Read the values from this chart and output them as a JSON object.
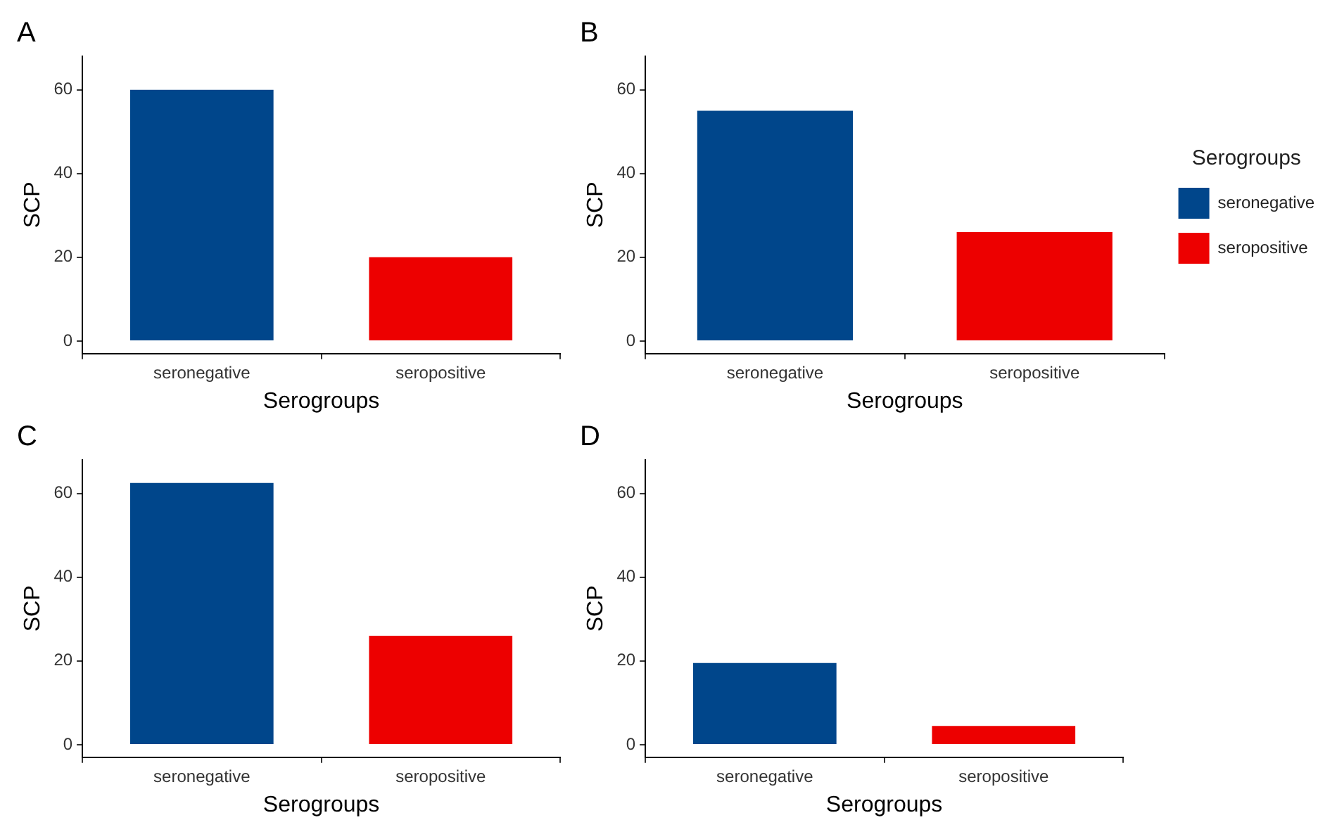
{
  "chart_data": [
    {
      "type": "bar",
      "title": "A",
      "categories": [
        "seronegative",
        "seropositive"
      ],
      "series": [
        {
          "color": "#00468b",
          "values": [
            60,
            null
          ]
        },
        {
          "color": "#ed0000",
          "values": [
            null,
            20
          ]
        }
      ],
      "xlabel": "Serogroups",
      "ylabel": "SCP",
      "ylim": [
        -3,
        68
      ],
      "yticks": [
        0,
        20,
        40,
        60
      ],
      "grid": false,
      "legend": false
    },
    {
      "type": "bar",
      "title": "B",
      "categories": [
        "seronegative",
        "seropositive"
      ],
      "series": [
        {
          "name": "seronegative",
          "color": "#00468b",
          "values": [
            55,
            null
          ]
        },
        {
          "name": "seropositive",
          "color": "#ed0000",
          "values": [
            null,
            26
          ]
        }
      ],
      "xlabel": "Serogroups",
      "ylabel": "SCP",
      "ylim": [
        -3,
        68
      ],
      "yticks": [
        0,
        20,
        40,
        60
      ],
      "grid": false,
      "legend": "right",
      "legend_title": "Serogroups"
    },
    {
      "type": "bar",
      "title": "C",
      "categories": [
        "seronegative",
        "seropositive"
      ],
      "series": [
        {
          "color": "#00468b",
          "values": [
            62.5,
            null
          ]
        },
        {
          "color": "#ed0000",
          "values": [
            null,
            26
          ]
        }
      ],
      "xlabel": "Serogroups",
      "ylabel": "SCP",
      "ylim": [
        -3,
        68
      ],
      "yticks": [
        0,
        20,
        40,
        60
      ],
      "grid": false,
      "legend": false
    },
    {
      "type": "bar",
      "title": "D",
      "categories": [
        "seronegative",
        "seropositive"
      ],
      "series": [
        {
          "color": "#00468b",
          "values": [
            19.5,
            null
          ]
        },
        {
          "color": "#ed0000",
          "values": [
            null,
            4.5
          ]
        }
      ],
      "xlabel": "Serogroups",
      "ylabel": "SCP",
      "ylim": [
        -3,
        68
      ],
      "yticks": [
        0,
        20,
        40,
        60
      ],
      "grid": false,
      "legend": false
    }
  ]
}
